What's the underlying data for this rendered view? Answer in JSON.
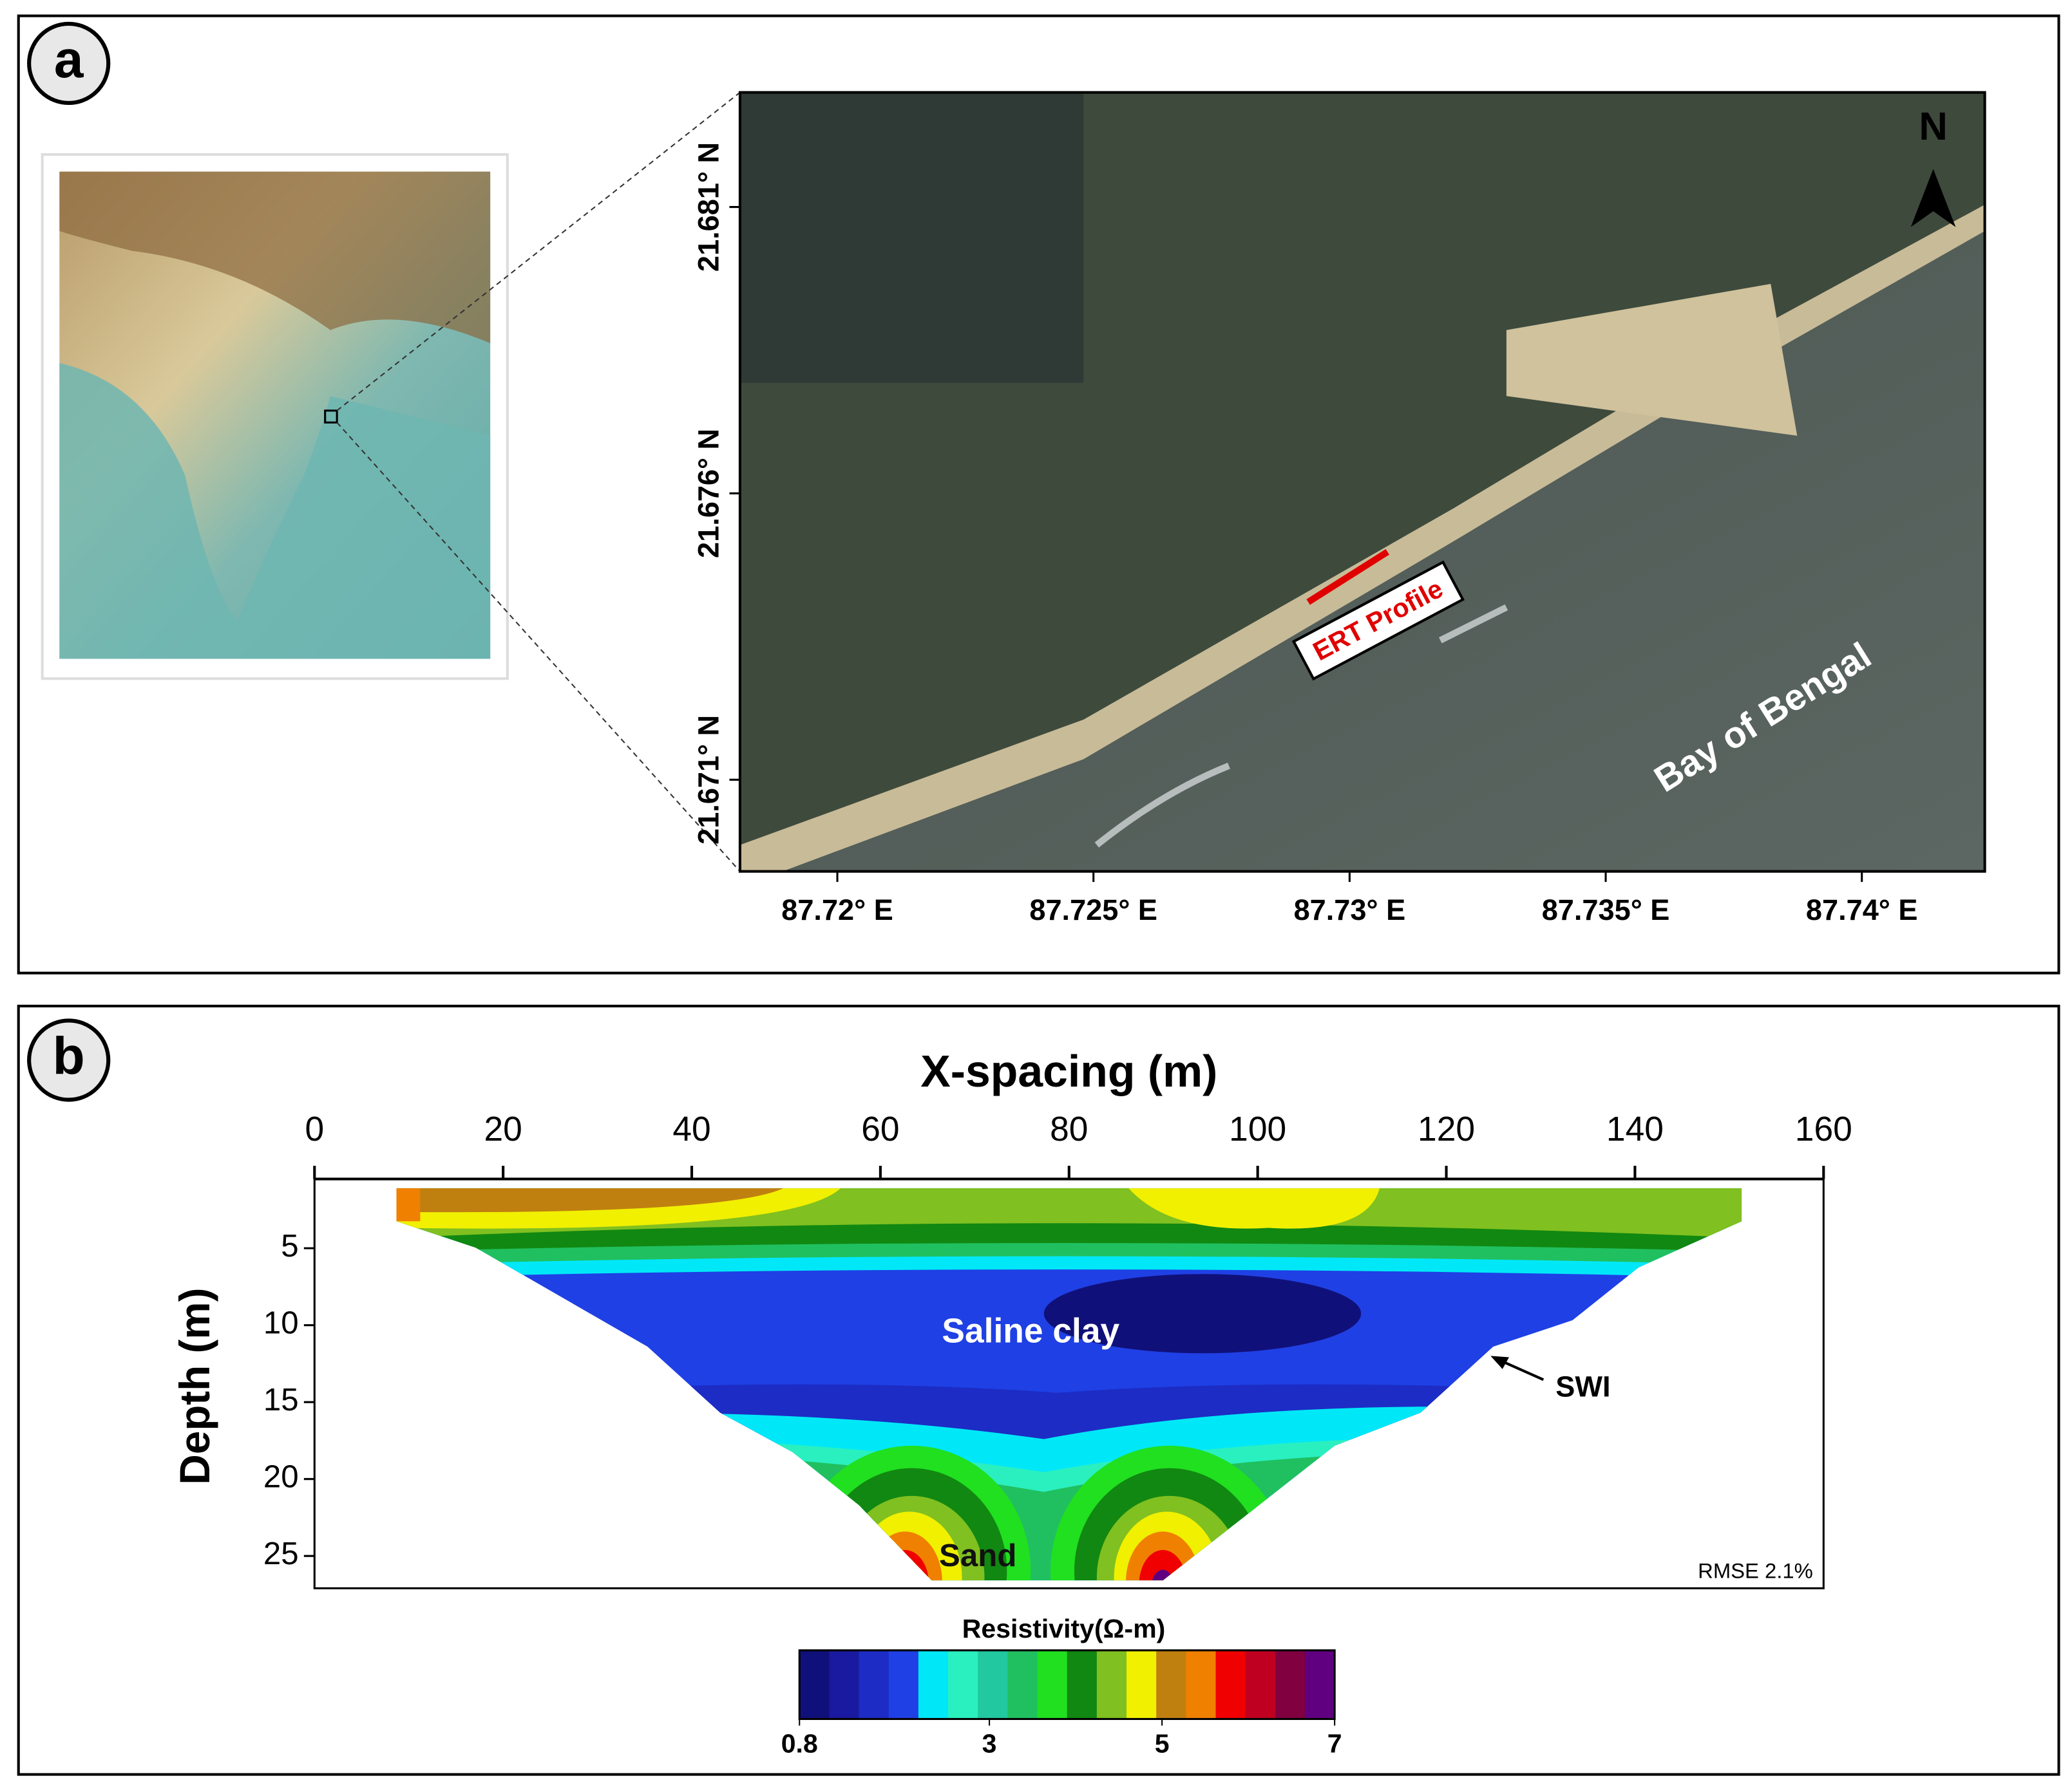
{
  "panel_a": {
    "label": "a",
    "map": {
      "xlim": [
        87.7181,
        87.7424
      ],
      "ylim": [
        21.6694,
        21.683
      ],
      "xticks": [
        {
          "value": 87.72,
          "label": "87.72° E"
        },
        {
          "value": 87.725,
          "label": "87.725° E"
        },
        {
          "value": 87.73,
          "label": "87.73° E"
        },
        {
          "value": 87.735,
          "label": "87.735° E"
        },
        {
          "value": 87.74,
          "label": "87.74° E"
        }
      ],
      "yticks": [
        {
          "value": 21.671,
          "label": "21.671° N"
        },
        {
          "value": 21.676,
          "label": "21.676° N"
        },
        {
          "value": 21.681,
          "label": "21.681° N"
        }
      ],
      "north": "N",
      "profile_label": "ERT Profile",
      "sea_label": "Bay of Bengal"
    }
  },
  "panel_b": {
    "label": "b",
    "xlabel": "X-spacing (m)",
    "ylabel": "Depth (m)",
    "xlim": [
      0,
      160
    ],
    "xticks": [
      0,
      20,
      40,
      60,
      80,
      100,
      120,
      140,
      160
    ],
    "ylim": [
      0.5,
      27.1
    ],
    "yticks": [
      5,
      10,
      15,
      20,
      25
    ],
    "annotations": {
      "clay": "Saline clay",
      "sand": "Sand",
      "swi": "SWI",
      "rmse": "RMSE 2.1%"
    },
    "colorbar": {
      "title": "Resistivity(Ω-m)",
      "lim": [
        0.8,
        7
      ],
      "ticks": [
        0.8,
        3,
        5,
        7
      ],
      "colors": [
        "#10107a",
        "#1a1aa0",
        "#1c2cc4",
        "#1f40e4",
        "#00e8f8",
        "#2af0c0",
        "#22c8a0",
        "#20c060",
        "#20e020",
        "#118811",
        "#80c020",
        "#f0f000",
        "#c08010",
        "#f08000",
        "#f00000",
        "#c00020",
        "#800040",
        "#600080"
      ]
    }
  }
}
